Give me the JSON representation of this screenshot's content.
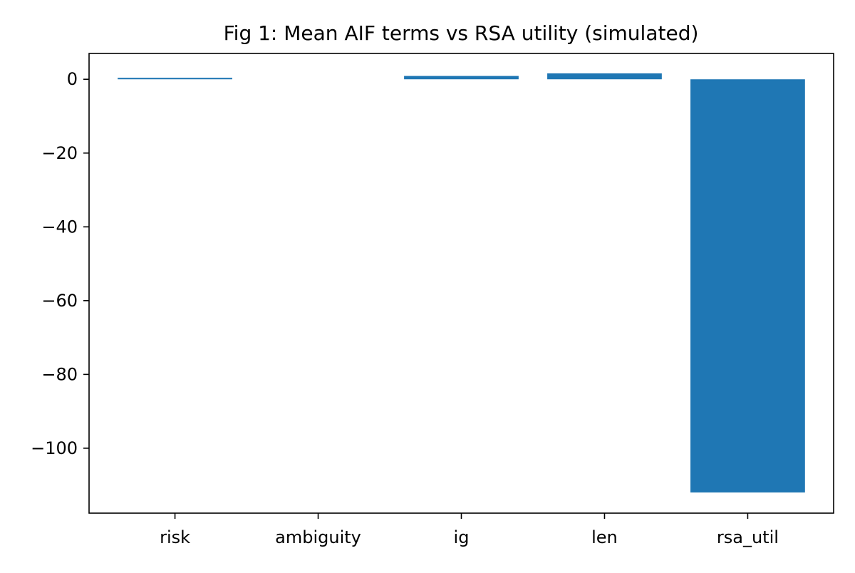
{
  "chart_data": {
    "type": "bar",
    "title": "Fig 1: Mean AIF terms vs RSA utility (simulated)",
    "xlabel": "",
    "ylabel": "",
    "categories": [
      "risk",
      "ambiguity",
      "ig",
      "len",
      "rsa_util"
    ],
    "values": [
      0.4,
      0.0,
      0.9,
      1.6,
      -112.0
    ],
    "ylim": [
      -117.6,
      7.0
    ],
    "yticks": [
      0,
      -20,
      -40,
      -60,
      -80,
      -100
    ],
    "ytick_labels": [
      "0",
      "−20",
      "−40",
      "−60",
      "−80",
      "−100"
    ],
    "bar_color": "#1f77b4",
    "grid": false,
    "legend": "none"
  }
}
